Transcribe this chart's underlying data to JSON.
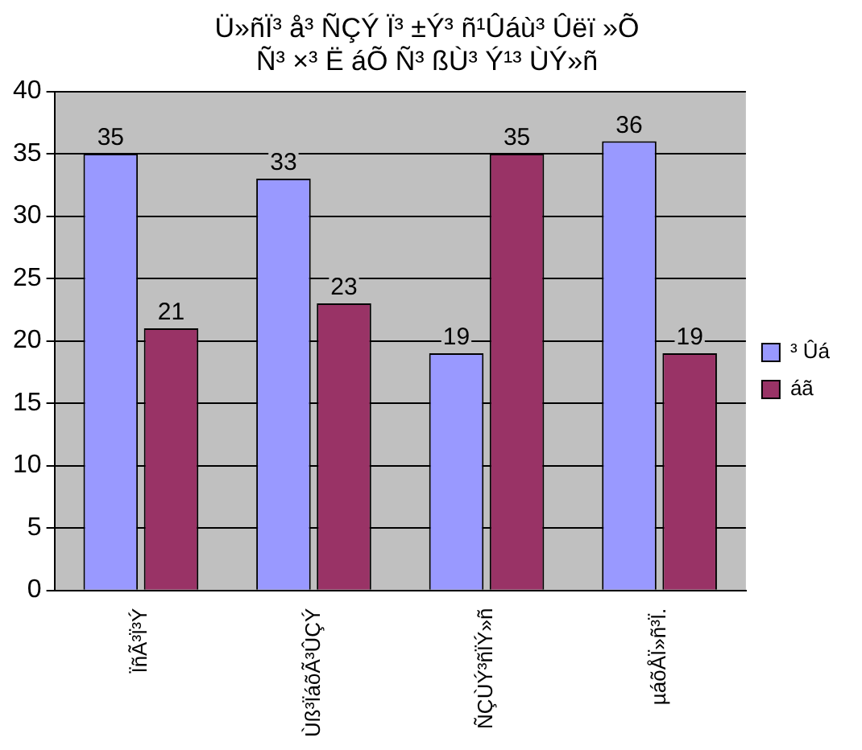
{
  "chart_data": {
    "type": "bar",
    "title": "Ü»ñÏ³ å³ ÑÇÝ Ï³ ±Ý³ ñ¹Ûáù³ Ûëï »Õ\nÑ³ ×³ Ë áÕ Ñ³ ßÙ³ Ý¹³ ÙÝ»ñ",
    "categories": [
      "ÏñÃ³Ï³Ý",
      "Ùß³ÏáõÃ³ÛÇÝ",
      "ÑÇÙÝ³ñÏÝ»ñ",
      "µáõÅÏ»ñ³Ï."
    ],
    "series": [
      {
        "name": "³ Ûá",
        "color": "#9999ff",
        "values": [
          35,
          33,
          19,
          36
        ]
      },
      {
        "name": "áã",
        "color": "#993366",
        "values": [
          21,
          23,
          35,
          19
        ]
      }
    ],
    "ylim": [
      0,
      40
    ],
    "yticks": [
      0,
      5,
      10,
      15,
      20,
      25,
      30,
      35,
      40
    ],
    "grid": "y",
    "legend": "right",
    "data_labels": true
  }
}
